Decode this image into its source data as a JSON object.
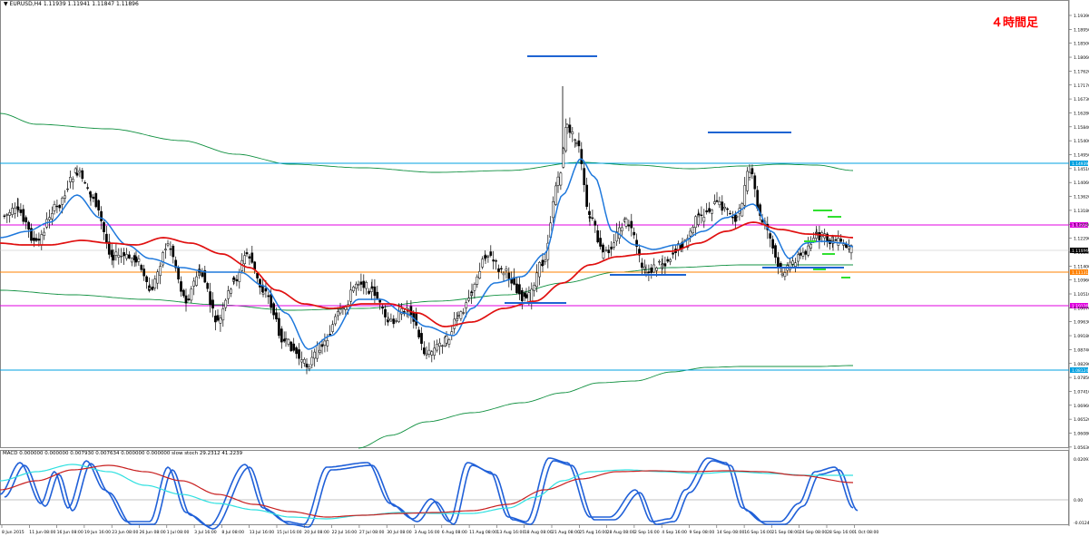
{
  "window": {
    "symbol_header": "▼ EURUSD,H4  1.11939 1.11941 1.11847 1.11896",
    "timeframe_badge": "４時間足"
  },
  "macd_panel": {
    "label": "MACD 0.000000 0.000000 0.007930 0.007634 0.000000 0.000000  slow stoch 29.2312 41.2239",
    "price_axis": [
      "0.020932",
      "0.00",
      "-0.012431"
    ]
  },
  "price_axis": {
    "labels": [
      "1.19390",
      "1.18950",
      "1.18500",
      "1.18060",
      "1.17620",
      "1.17170",
      "1.16730",
      "1.16280",
      "1.15840",
      "1.15400",
      "1.14950",
      "1.14510",
      "1.14060",
      "1.13620",
      "1.13180",
      "1.12730",
      "1.12290",
      "1.11840",
      "1.11400",
      "1.10960",
      "1.10510",
      "1.10070",
      "1.09630",
      "1.09180",
      "1.08740",
      "1.08290",
      "1.07850",
      "1.07410",
      "1.06960",
      "1.06520",
      "1.06080",
      "1.05630"
    ],
    "current_price_tag": "1.11896",
    "line_tags": [
      "1.14939",
      "1.13059",
      "1.11131",
      "1.10126",
      "1.08124"
    ]
  },
  "time_axis": {
    "labels": [
      "8 Jun 2015",
      "11 Jun 08:00",
      "16 Jun 08:00",
      "19 Jun 16:00",
      "23 Jun 08:00",
      "26 Jun 08:00",
      "1 Jul 08:00",
      "3 Jul 16:00",
      "8 Jul 08:00",
      "13 Jul 16:00",
      "15 Jul 16:00",
      "20 Jul 08:00",
      "22 Jul 16:00",
      "27 Jul 08:00",
      "30 Jul 08:00",
      "3 Aug 16:00",
      "6 Aug 08:00",
      "11 Aug 08:00",
      "13 Aug 16:00",
      "18 Aug 08:00",
      "21 Aug 08:00",
      "25 Aug 16:00",
      "28 Aug 08:00",
      "2 Sep 16:00",
      "4 Sep 16:00",
      "9 Sep 08:00",
      "14 Sep 08:00",
      "16 Sep 16:00",
      "21 Sep 08:00",
      "24 Sep 08:00",
      "28 Sep 16:00",
      "1 Oct 08:00"
    ]
  },
  "colors": {
    "candle": "#000000",
    "ma_blue": "#1e78dc",
    "ma_red": "#e01010",
    "envelope_green": "#109040",
    "horizontal_cyan": "#00a0e0",
    "horizontal_magenta": "#e000e0",
    "horizontal_orange": "#ff8000",
    "segment_blue": "#1e64d2",
    "segment_green": "#30e030",
    "macd_blue": "#2060d8",
    "macd_cyan": "#30e0e0",
    "macd_red": "#c82020",
    "badge_red": "#ff0000"
  }
}
